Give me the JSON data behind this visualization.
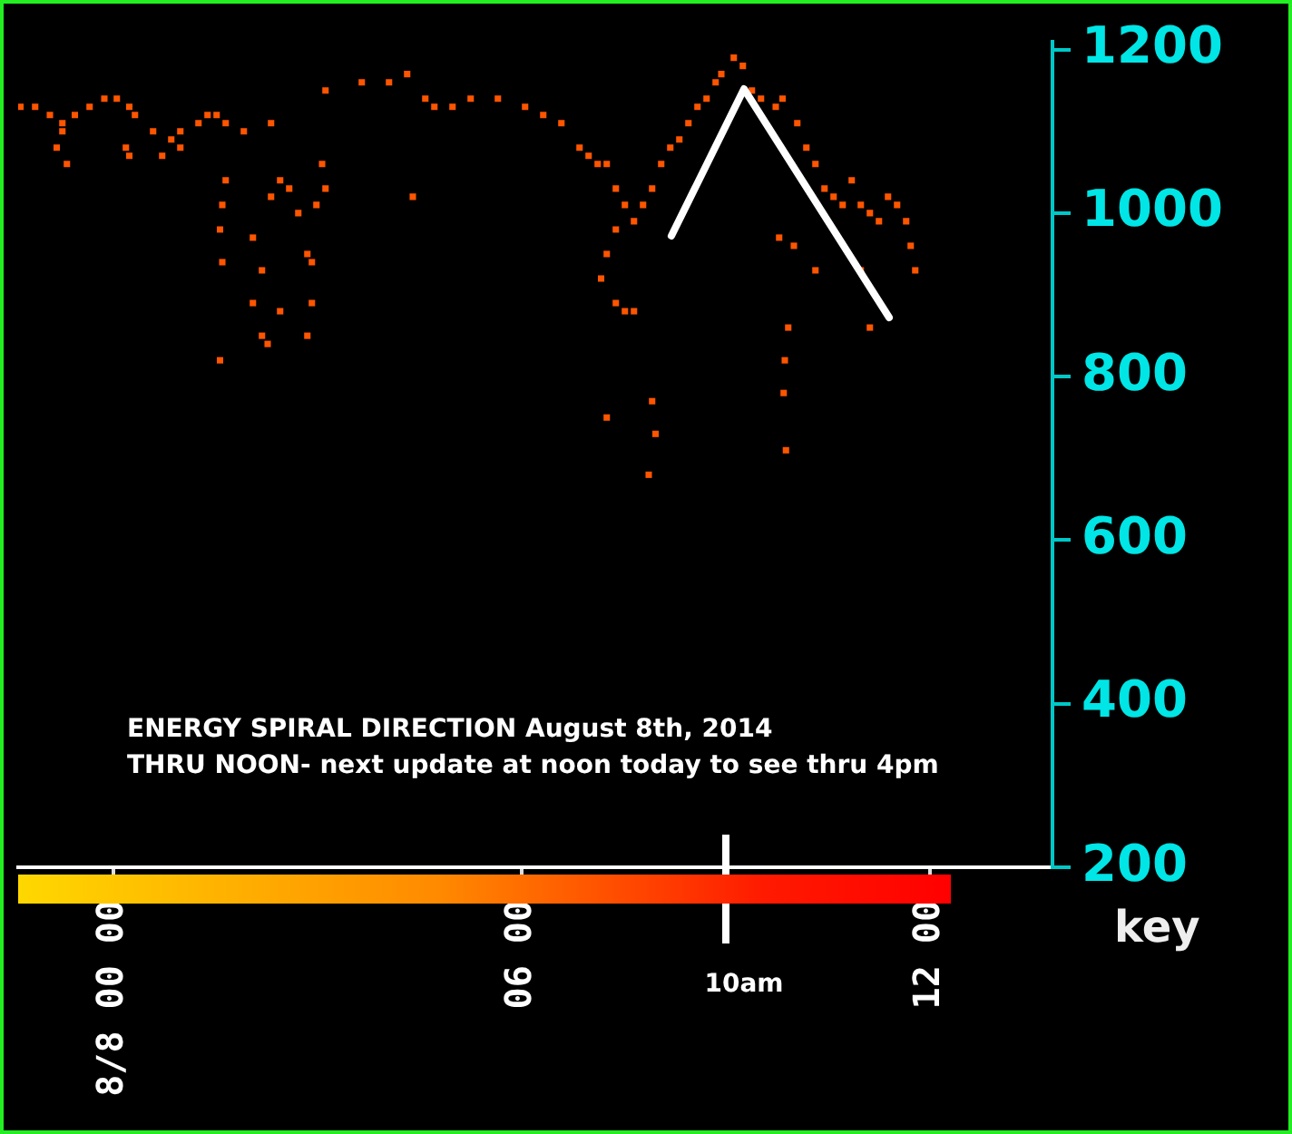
{
  "chart_data": {
    "type": "scatter",
    "title": "ENERGY SPIRAL DIRECTION August 8th, 2014",
    "subtitle": "THRU NOON- next update at noon today to see thru 4pm",
    "annotations": [
      "key"
    ],
    "xlim": [
      "2014-08-07T22:36",
      "2014-08-08T13:48"
    ],
    "xticks": [
      {
        "value": "2014-08-08T00:00",
        "label": "8/8 00 00"
      },
      {
        "value": "2014-08-08T06:00",
        "label": "06 00"
      },
      {
        "value": "2014-08-08T12:00",
        "label": "12 00"
      }
    ],
    "ylim": [
      200,
      1210
    ],
    "yticks": [
      200,
      400,
      600,
      800,
      1000,
      1200
    ],
    "grid": false,
    "legend": false,
    "marker": "square",
    "ref_lines": [
      {
        "axis": "x",
        "value": "2014-08-08T09:00",
        "label": "10am",
        "color": "#ffffff"
      }
    ],
    "series": [
      {
        "color": "#ff5500",
        "x": [
          "2014-08-07T22:38",
          "2014-08-07T22:51",
          "2014-08-07T23:04",
          "2014-08-07T23:15",
          "2014-08-07T23:26",
          "2014-08-07T23:39",
          "2014-08-07T23:52",
          "2014-08-08T00:03",
          "2014-08-08T00:14",
          "2014-08-08T00:19",
          "2014-08-08T00:35",
          "2014-08-08T00:51",
          "2014-08-08T00:59",
          "2014-08-08T01:15",
          "2014-08-08T01:23",
          "2014-08-08T01:31",
          "2014-08-08T01:39",
          "2014-08-08T01:55",
          "2014-08-08T02:19",
          "2014-08-08T03:07",
          "2014-08-08T03:39",
          "2014-08-08T04:03",
          "2014-08-08T04:19",
          "2014-08-08T04:35",
          "2014-08-08T04:43",
          "2014-08-08T04:59",
          "2014-08-08T05:15",
          "2014-08-08T05:39",
          "2014-08-08T06:03",
          "2014-08-08T06:19",
          "2014-08-08T06:35",
          "2014-08-08T06:51",
          "2014-08-08T06:59",
          "2014-08-08T07:07",
          "2014-08-08T07:15",
          "2014-08-07T23:15",
          "2014-08-07T23:10",
          "2014-08-07T23:19",
          "2014-08-08T00:11",
          "2014-08-08T00:14",
          "2014-08-08T00:43",
          "2014-08-08T00:59",
          "2014-08-08T01:39",
          "2014-08-08T01:36",
          "2014-08-08T01:34",
          "2014-08-08T01:36",
          "2014-08-08T02:03",
          "2014-08-08T02:19",
          "2014-08-08T02:27",
          "2014-08-08T02:35",
          "2014-08-08T02:43",
          "2014-08-08T02:51",
          "2014-08-08T02:11",
          "2014-08-08T02:03",
          "2014-08-08T02:27",
          "2014-08-08T02:55",
          "2014-08-08T02:59",
          "2014-08-08T03:07",
          "2014-08-08T03:04",
          "2014-08-08T02:16",
          "2014-08-08T01:34",
          "2014-08-08T02:11",
          "2014-08-08T02:51",
          "2014-08-08T02:55",
          "2014-08-08T04:24",
          "2014-08-08T07:23",
          "2014-08-08T07:31",
          "2014-08-08T07:23",
          "2014-08-08T07:15",
          "2014-08-08T07:10",
          "2014-08-08T07:23",
          "2014-08-08T07:31",
          "2014-08-08T07:39",
          "2014-08-08T07:47",
          "2014-08-08T07:55",
          "2014-08-08T08:03",
          "2014-08-08T08:11",
          "2014-08-08T08:19",
          "2014-08-08T08:27",
          "2014-08-08T08:35",
          "2014-08-08T08:43",
          "2014-08-08T08:51",
          "2014-08-08T08:56",
          "2014-08-08T09:07",
          "2014-08-08T09:15",
          "2014-08-08T09:23",
          "2014-08-08T09:31",
          "2014-08-08T09:44",
          "2014-08-08T09:50",
          "2014-08-08T10:03",
          "2014-08-08T10:11",
          "2014-08-08T10:19",
          "2014-08-08T10:27",
          "2014-08-08T10:35",
          "2014-08-08T10:43",
          "2014-08-08T10:51",
          "2014-08-08T10:59",
          "2014-08-08T11:07",
          "2014-08-08T11:15",
          "2014-08-08T11:23",
          "2014-08-08T11:31",
          "2014-08-08T11:39",
          "2014-08-08T11:43",
          "2014-08-08T11:47",
          "2014-08-08T07:55",
          "2014-08-08T07:58",
          "2014-08-08T07:15",
          "2014-08-08T09:55",
          "2014-08-08T09:52",
          "2014-08-08T09:51",
          "2014-08-08T09:53",
          "2014-08-08T10:00",
          "2014-08-08T09:47",
          "2014-08-08T10:19",
          "2014-08-08T10:59",
          "2014-08-08T11:07",
          "2014-08-08T07:52",
          "2014-08-08T07:39"
        ],
        "values": [
          1130,
          1130,
          1120,
          1110,
          1120,
          1130,
          1140,
          1140,
          1130,
          1120,
          1100,
          1090,
          1100,
          1110,
          1120,
          1120,
          1110,
          1100,
          1110,
          1150,
          1160,
          1160,
          1170,
          1140,
          1130,
          1130,
          1140,
          1140,
          1130,
          1120,
          1110,
          1080,
          1070,
          1060,
          1060,
          1100,
          1080,
          1060,
          1080,
          1070,
          1070,
          1080,
          1040,
          1010,
          980,
          940,
          970,
          1020,
          1040,
          1030,
          1000,
          950,
          930,
          890,
          880,
          940,
          1010,
          1030,
          1060,
          840,
          820,
          850,
          850,
          890,
          1020,
          1030,
          1010,
          980,
          950,
          920,
          890,
          880,
          990,
          1010,
          1030,
          1060,
          1080,
          1090,
          1110,
          1130,
          1140,
          1160,
          1170,
          1190,
          1180,
          1150,
          1140,
          1130,
          1140,
          1110,
          1080,
          1060,
          1030,
          1020,
          1010,
          1040,
          1010,
          1000,
          990,
          1020,
          1010,
          990,
          960,
          930,
          770,
          730,
          750,
          860,
          820,
          780,
          710,
          960,
          970,
          930,
          930,
          860,
          680,
          880
        ]
      }
    ]
  }
}
